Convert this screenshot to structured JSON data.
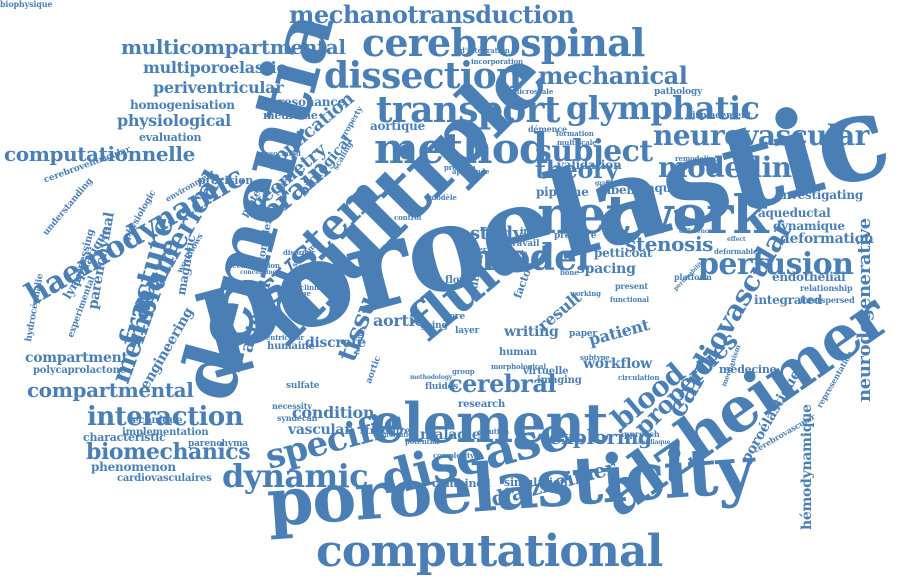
{
  "color": "#4a7fb5",
  "words": [
    {
      "text": "poroelastic",
      "weight": 120
    },
    {
      "text": "poroelasticity",
      "weight": 90
    },
    {
      "text": "multiple",
      "weight": 85
    },
    {
      "text": "dementia",
      "weight": 80
    },
    {
      "text": "computational",
      "weight": 62
    },
    {
      "text": "alzheimer",
      "weight": 68
    },
    {
      "text": "network",
      "weight": 55
    },
    {
      "text": "element",
      "weight": 55
    },
    {
      "text": "disease",
      "weight": 52
    },
    {
      "text": "fluid",
      "weight": 52
    },
    {
      "text": "method",
      "weight": 50
    },
    {
      "text": "system",
      "weight": 50
    },
    {
      "text": "cerebrospinal",
      "weight": 45
    },
    {
      "text": "dissection",
      "weight": 42
    },
    {
      "text": "transport",
      "weight": 42
    },
    {
      "text": "model",
      "weight": 42
    },
    {
      "text": "specific",
      "weight": 40
    },
    {
      "text": "glymphatic",
      "weight": 38
    },
    {
      "text": "perfusion",
      "weight": 36
    },
    {
      "text": "haemodynamic",
      "weight": 36
    },
    {
      "text": "dynamic",
      "weight": 36
    },
    {
      "text": "neurovascular",
      "weight": 34
    },
    {
      "text": "modelling",
      "weight": 34
    },
    {
      "text": "cardiovascular",
      "weight": 34
    },
    {
      "text": "fracture",
      "weight": 34
    },
    {
      "text": "subject",
      "weight": 34
    },
    {
      "text": "blood",
      "weight": 32
    },
    {
      "text": "numerical",
      "weight": 32
    },
    {
      "text": "brain",
      "weight": 30
    },
    {
      "text": "mechanical",
      "weight": 28
    },
    {
      "text": "interaction",
      "weight": 28
    },
    {
      "text": "membrane",
      "weight": 28
    },
    {
      "text": "neurodegenerative",
      "weight": 24
    },
    {
      "text": "tissue",
      "weight": 28
    },
    {
      "text": "theory",
      "weight": 28
    },
    {
      "text": "properties",
      "weight": 28
    },
    {
      "text": "cerebral",
      "weight": 26
    },
    {
      "text": "biomechanics",
      "weight": 26
    },
    {
      "text": "mechanotransduction",
      "weight": 24
    },
    {
      "text": "multicompartmental",
      "weight": 22
    },
    {
      "text": "computationnelle",
      "weight": 22
    },
    {
      "text": "compartmental",
      "weight": 22
    },
    {
      "text": "stenosis",
      "weight": 22
    },
    {
      "text": "exploring",
      "weight": 22
    },
    {
      "text": "d’alzheimer",
      "weight": 22
    },
    {
      "text": "geometry",
      "weight": 20
    },
    {
      "text": "application",
      "weight": 20
    },
    {
      "text": "multiporoelastic",
      "weight": 18
    },
    {
      "text": "periventricular",
      "weight": 18
    },
    {
      "text": "physiological",
      "weight": 18
    },
    {
      "text": "condition",
      "weight": 18
    },
    {
      "text": "arterial",
      "weight": 18
    },
    {
      "text": "parenchymal",
      "weight": 16
    },
    {
      "text": "engineering",
      "weight": 16
    },
    {
      "text": "biological",
      "weight": 16
    },
    {
      "text": "deformation",
      "weight": 16
    },
    {
      "text": "study",
      "weight": 20
    },
    {
      "text": "aortic",
      "weight": 18
    },
    {
      "text": "patient",
      "weight": 18
    },
    {
      "text": "result",
      "weight": 18
    },
    {
      "text": "magnetic",
      "weight": 16
    },
    {
      "text": "lymphatique",
      "weight": 14
    },
    {
      "text": "compartment",
      "weight": 14
    },
    {
      "text": "vascular",
      "weight": 14
    },
    {
      "text": "maladie",
      "weight": 14
    },
    {
      "text": "discrete",
      "weight": 14
    },
    {
      "text": "workflow",
      "weight": 14
    },
    {
      "text": "spacing",
      "weight": 14
    },
    {
      "text": "writing",
      "weight": 14
    },
    {
      "text": "hémodynamique",
      "weight": 14
    },
    {
      "text": "poroélastique",
      "weight": 14
    },
    {
      "text": "investigating",
      "weight": 12
    },
    {
      "text": "aqueductal",
      "weight": 12
    },
    {
      "text": "dynamique",
      "weight": 12
    },
    {
      "text": "endothelial",
      "weight": 12
    },
    {
      "text": "integrated",
      "weight": 12
    },
    {
      "text": "petticoat",
      "weight": 12
    },
    {
      "text": "labeling",
      "weight": 12
    },
    {
      "text": "aqueduct",
      "weight": 12
    },
    {
      "text": "pipeline",
      "weight": 12
    },
    {
      "text": "validation",
      "weight": 12
    },
    {
      "text": "homogenisation",
      "weight": 12
    },
    {
      "text": "resonance",
      "weight": 12
    },
    {
      "text": "evaluation",
      "weight": 11
    },
    {
      "text": "phenomenon",
      "weight": 12
    },
    {
      "text": "characteristic",
      "weight": 11
    },
    {
      "text": "implementation",
      "weight": 10
    },
    {
      "text": "cardiovasculaires",
      "weight": 10
    },
    {
      "text": "polycaprolactone",
      "weight": 10
    },
    {
      "text": "technique",
      "weight": 10
    },
    {
      "text": "combined",
      "weight": 11
    },
    {
      "text": "simulation",
      "weight": 11
    },
    {
      "text": "médecine",
      "weight": 11
    },
    {
      "text": "précision",
      "weight": 11
    },
    {
      "text": "virtuelle",
      "weight": 10
    },
    {
      "text": "imaging",
      "weight": 10
    },
    {
      "text": "research",
      "weight": 10
    },
    {
      "text": "human",
      "weight": 10
    },
    {
      "text": "humaine",
      "weight": 10
    },
    {
      "text": "structure",
      "weight": 10
    },
    {
      "text": "aortique",
      "weight": 12
    },
    {
      "text": "medicine",
      "weight": 11
    },
    {
      "text": "pathology",
      "weight": 9
    },
    {
      "text": "displacement",
      "weight": 9
    },
    {
      "text": "relationship",
      "weight": 8
    },
    {
      "text": "interspersed",
      "weight": 8
    },
    {
      "text": "representation",
      "weight": 8
    },
    {
      "text": "cerebrovascular",
      "weight": 8
    },
    {
      "text": "cerebroventricular",
      "weight": 9
    },
    {
      "text": "understanding",
      "weight": 9
    },
    {
      "text": "physiologic",
      "weight": 9
    },
    {
      "text": "processing",
      "weight": 10
    },
    {
      "text": "hydrocéphalie",
      "weight": 9
    },
    {
      "text": "experimental",
      "weight": 9
    },
    {
      "text": "sulfate",
      "weight": 9
    },
    {
      "text": "necessity",
      "weight": 8
    },
    {
      "text": "syndecan",
      "weight": 8
    },
    {
      "text": "parenchyma",
      "weight": 9
    },
    {
      "text": "different",
      "weight": 9
    },
    {
      "text": "protein",
      "weight": 10
    },
    {
      "text": "complex",
      "weight": 10
    },
    {
      "text": "environment",
      "weight": 8
    },
    {
      "text": "workflows",
      "weight": 8
    },
    {
      "text": "système",
      "weight": 9
    },
    {
      "text": "théorie",
      "weight": 8
    },
    {
      "text": "going",
      "weight": 9
    },
    {
      "text": "layer",
      "weight": 9
    },
    {
      "text": "pore",
      "weight": 9
    },
    {
      "text": "flow",
      "weight": 10
    },
    {
      "text": "rock",
      "weight": 11
    },
    {
      "text": "direct",
      "weight": 11
    },
    {
      "text": "factor",
      "weight": 11
    },
    {
      "text": "fluides",
      "weight": 9
    },
    {
      "text": "paper",
      "weight": 9
    },
    {
      "text": "present",
      "weight": 8
    },
    {
      "text": "platform",
      "weight": 8
    },
    {
      "text": "approach",
      "weight": 8
    },
    {
      "text": "scaling",
      "weight": 8
    },
    {
      "text": "appliquée",
      "weight": 7
    },
    {
      "text": "d’intégration",
      "weight": 7
    },
    {
      "text": "incorporation",
      "weight": 7
    },
    {
      "text": "microscale",
      "weight": 7
    },
    {
      "text": "formation",
      "weight": 7
    },
    {
      "text": "multiscale",
      "weight": 7
    },
    {
      "text": "remodeling",
      "weight": 7
    },
    {
      "text": "deformable",
      "weight": 7
    },
    {
      "text": "démence",
      "weight": 8
    },
    {
      "text": "property",
      "weight": 8
    },
    {
      "text": "associated",
      "weight": 7
    },
    {
      "text": "problem",
      "weight": 7
    },
    {
      "text": "control",
      "weight": 7
    },
    {
      "text": "image",
      "weight": 9
    },
    {
      "text": "pressure",
      "weight": 9
    },
    {
      "text": "travail",
      "weight": 9
    },
    {
      "text": "aortic",
      "weight": 9
    },
    {
      "text": "modèle",
      "weight": 7
    },
    {
      "text": "water",
      "weight": 7
    },
    {
      "text": "disorder",
      "weight": 7
    },
    {
      "text": "drainage",
      "weight": 7
    },
    {
      "text": "accumulation",
      "weight": 7
    },
    {
      "text": "clinical",
      "weight": 7
    },
    {
      "text": "bone",
      "weight": 7
    },
    {
      "text": "working",
      "weight": 7
    },
    {
      "text": "functional",
      "weight": 7
    },
    {
      "text": "subtype",
      "weight": 7
    },
    {
      "text": "circulation",
      "weight": 7
    },
    {
      "text": "mechanism",
      "weight": 7
    },
    {
      "text": "potential",
      "weight": 7
    },
    {
      "text": "solution",
      "weight": 7
    },
    {
      "text": "complexity",
      "weight": 7
    },
    {
      "text": "bifurcation",
      "weight": 6
    },
    {
      "text": "ventricular",
      "weight": 7
    },
    {
      "text": "lucency",
      "weight": 7
    },
    {
      "text": "cardiaque",
      "weight": 6
    },
    {
      "text": "effect",
      "weight": 7
    },
    {
      "text": "permeability",
      "weight": 6
    },
    {
      "text": "difference",
      "weight": 6
    },
    {
      "text": "morphological",
      "weight": 6
    },
    {
      "text": "group",
      "weight": 7
    },
    {
      "text": "media",
      "weight": 7
    },
    {
      "text": "example",
      "weight": 7
    },
    {
      "text": "region",
      "weight": 6
    },
    {
      "text": "concerning",
      "weight": 6
    },
    {
      "text": "methodology",
      "weight": 6
    },
    {
      "text": "gradient",
      "weight": 6
    },
    {
      "text": "biophysique",
      "weight": 6
    }
  ]
}
